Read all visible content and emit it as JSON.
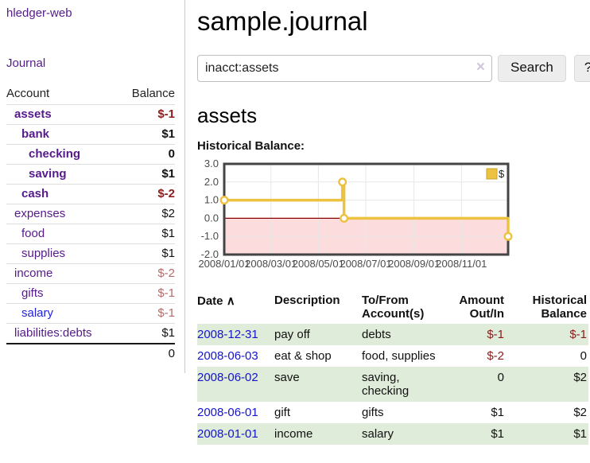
{
  "sidebar": {
    "brand": "hledger-web",
    "nav": {
      "journal_label": "Journal"
    },
    "table": {
      "account_header": "Account",
      "balance_header": "Balance",
      "accounts": [
        {
          "label": "assets",
          "indent": 1,
          "bold": true,
          "color": "purple",
          "balance": "$-1",
          "balance_class": "neg"
        },
        {
          "label": "bank",
          "indent": 2,
          "bold": true,
          "color": "purple",
          "balance": "$1",
          "balance_class": ""
        },
        {
          "label": "checking",
          "indent": 3,
          "bold": true,
          "color": "purple",
          "balance": "0",
          "balance_class": ""
        },
        {
          "label": "saving",
          "indent": 3,
          "bold": true,
          "color": "purple",
          "balance": "$1",
          "balance_class": ""
        },
        {
          "label": "cash",
          "indent": 2,
          "bold": true,
          "color": "purple",
          "balance": "$-2",
          "balance_class": "neg"
        },
        {
          "label": "expenses",
          "indent": 1,
          "bold": false,
          "color": "purple",
          "balance": "$2",
          "balance_class": ""
        },
        {
          "label": "food",
          "indent": 2,
          "bold": false,
          "color": "purple",
          "balance": "$1",
          "balance_class": ""
        },
        {
          "label": "supplies",
          "indent": 2,
          "bold": false,
          "color": "purple",
          "balance": "$1",
          "balance_class": ""
        },
        {
          "label": "income",
          "indent": 1,
          "bold": false,
          "color": "purple",
          "balance": "$-2",
          "balance_class": "neg-soft"
        },
        {
          "label": "gifts",
          "indent": 2,
          "bold": false,
          "color": "purple",
          "balance": "$-1",
          "balance_class": "neg-soft"
        },
        {
          "label": "salary",
          "indent": 2,
          "bold": false,
          "color": "blue",
          "balance": "$-1",
          "balance_class": "neg-soft"
        },
        {
          "label": "liabilities:debts",
          "indent": 1,
          "bold": false,
          "color": "purple",
          "balance": "$1",
          "balance_class": ""
        }
      ],
      "total": "0"
    }
  },
  "main": {
    "title": "sample.journal",
    "search": {
      "value": "inacct:assets",
      "clear_icon": "×",
      "button_label": "Search",
      "help_label": "?"
    },
    "account_heading": "assets",
    "chart_label": "Historical Balance:"
  },
  "chart_data": {
    "type": "line",
    "step": true,
    "title": "Historical Balance:",
    "x_unit": "days from 2008-01-01",
    "series": [
      {
        "name": "$",
        "color": "#edc240",
        "points": [
          {
            "x": 0,
            "y": 1,
            "date": "2008-01-01"
          },
          {
            "x": 152,
            "y": 2,
            "date": "2008-06-01"
          },
          {
            "x": 154,
            "y": 0,
            "date": "2008-06-03"
          },
          {
            "x": 365,
            "y": -1,
            "date": "2008-12-31"
          }
        ]
      }
    ],
    "xlim": [
      0,
      365
    ],
    "ylim": [
      -2,
      3
    ],
    "y_ticks": [
      {
        "v": 3,
        "label": "3.0"
      },
      {
        "v": 2,
        "label": "2.0"
      },
      {
        "v": 1,
        "label": "1.0"
      },
      {
        "v": 0,
        "label": "0.0"
      },
      {
        "v": -1,
        "label": "-1.0"
      },
      {
        "v": -2,
        "label": "-2.0"
      }
    ],
    "x_ticks": [
      {
        "v": 0,
        "label": "2008/01/01"
      },
      {
        "v": 60,
        "label": "2008/03/01"
      },
      {
        "v": 121,
        "label": "2008/05/01"
      },
      {
        "v": 182,
        "label": "2008/07/01"
      },
      {
        "v": 244,
        "label": "2008/09/01"
      },
      {
        "v": 305,
        "label": "2008/11/01"
      }
    ],
    "legend": {
      "label": "$",
      "position": "top-right",
      "swatch_color": "#edc240"
    },
    "grid": true,
    "colors": {
      "negative_region": "#fcdcdc",
      "zero_line": "#8b0000",
      "grid_line": "#e7e7e7",
      "plot_border": "#444444",
      "tick_text": "#4a4a4a",
      "point_fill": "#ffffff"
    }
  },
  "register": {
    "headers": {
      "date": "Date",
      "sort_icon": "∧",
      "description": "Description",
      "tofrom": "To/From\nAccount(s)",
      "amount": "Amount\nOut/In",
      "historical": "Historical\nBalance"
    },
    "rows": [
      {
        "date": "2008-12-31",
        "description": "pay off",
        "accounts": "debts",
        "amount": "$-1",
        "amount_class": "neg",
        "historical": "$-1",
        "historical_class": "neg",
        "shaded": true
      },
      {
        "date": "2008-06-03",
        "description": "eat & shop",
        "accounts": "food, supplies",
        "amount": "$-2",
        "amount_class": "neg",
        "historical": "0",
        "historical_class": "",
        "shaded": false
      },
      {
        "date": "2008-06-02",
        "description": "save",
        "accounts": "saving, checking",
        "amount": "0",
        "amount_class": "",
        "historical": "$2",
        "historical_class": "",
        "shaded": true
      },
      {
        "date": "2008-06-01",
        "description": "gift",
        "accounts": "gifts",
        "amount": "$1",
        "amount_class": "",
        "historical": "$2",
        "historical_class": "",
        "shaded": false
      },
      {
        "date": "2008-01-01",
        "description": "income",
        "accounts": "salary",
        "amount": "$1",
        "amount_class": "",
        "historical": "$1",
        "historical_class": "",
        "shaded": true
      }
    ]
  }
}
